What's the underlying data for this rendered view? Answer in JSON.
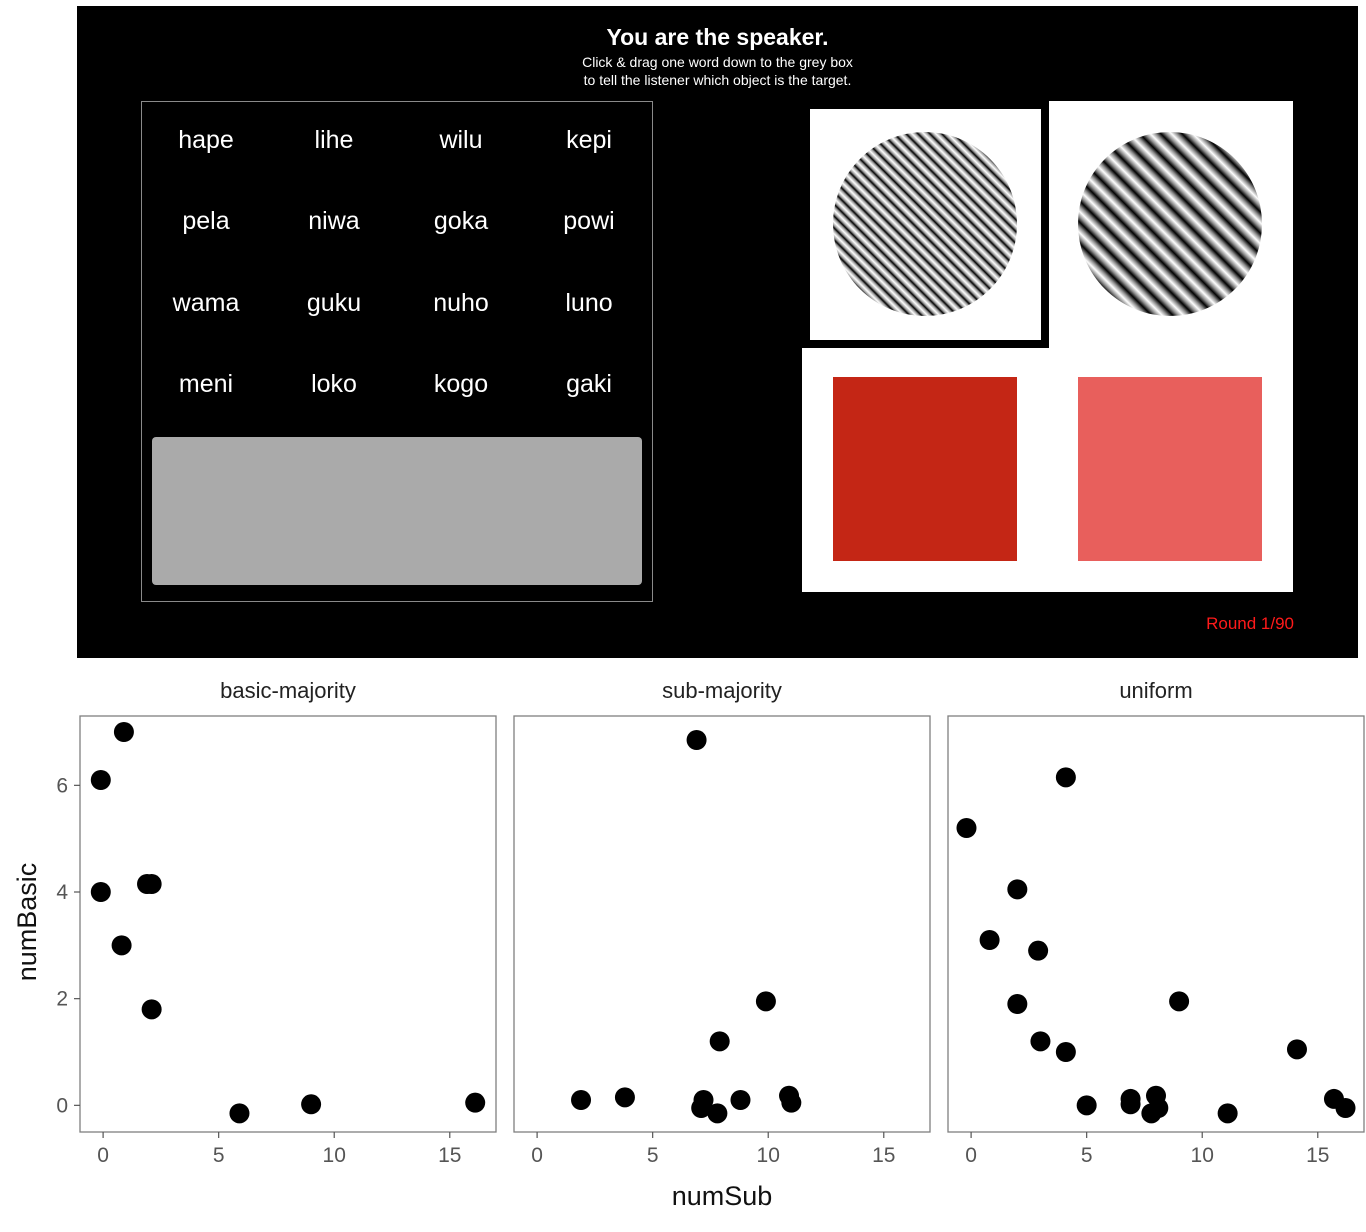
{
  "game": {
    "title": "You are the speaker.",
    "instruction_line1": "Click & drag one word down to the grey box",
    "instruction_line2": "to tell the listener which object is the target.",
    "words": [
      "hape",
      "lihe",
      "wilu",
      "kepi",
      "pela",
      "niwa",
      "goka",
      "powi",
      "wama",
      "guku",
      "nuho",
      "luno",
      "meni",
      "loko",
      "kogo",
      "gaki"
    ],
    "round_label": "Round 1/90",
    "colors": {
      "background": "#000000",
      "drop_box": "#aaaaaa",
      "round_text": "#ff1a1a",
      "swatch_dark_red": "#c42615",
      "swatch_light_red": "#e85f5c"
    },
    "objects": [
      {
        "kind": "grating",
        "target": true
      },
      {
        "kind": "grating",
        "target": false
      },
      {
        "kind": "color-swatch",
        "color": "#c42615"
      },
      {
        "kind": "color-swatch",
        "color": "#e85f5c"
      }
    ]
  },
  "chart_data": [
    {
      "type": "scatter",
      "title": "basic-majority",
      "xlabel": "numSub",
      "ylabel": "numBasic",
      "xlim": [
        -1,
        17
      ],
      "ylim": [
        -0.5,
        7.3
      ],
      "xticks": [
        0,
        5,
        10,
        15
      ],
      "yticks": [
        0,
        2,
        4,
        6
      ],
      "points": [
        {
          "x": -0.1,
          "y": 6.1
        },
        {
          "x": 0.9,
          "y": 7.0
        },
        {
          "x": -0.1,
          "y": 4.0
        },
        {
          "x": 1.9,
          "y": 4.15
        },
        {
          "x": 2.1,
          "y": 4.15
        },
        {
          "x": 0.8,
          "y": 3.0
        },
        {
          "x": 2.1,
          "y": 1.8
        },
        {
          "x": 5.9,
          "y": -0.15
        },
        {
          "x": 9.0,
          "y": 0.02
        },
        {
          "x": 16.1,
          "y": 0.05
        }
      ]
    },
    {
      "type": "scatter",
      "title": "sub-majority",
      "xlabel": "numSub",
      "ylabel": "numBasic",
      "xlim": [
        -1,
        17
      ],
      "ylim": [
        -0.5,
        7.3
      ],
      "xticks": [
        0,
        5,
        10,
        15
      ],
      "yticks": [
        0,
        2,
        4,
        6
      ],
      "points": [
        {
          "x": 6.9,
          "y": 6.85
        },
        {
          "x": 1.9,
          "y": 0.1
        },
        {
          "x": 3.8,
          "y": 0.15
        },
        {
          "x": 7.1,
          "y": -0.05
        },
        {
          "x": 7.2,
          "y": 0.1
        },
        {
          "x": 7.8,
          "y": -0.15
        },
        {
          "x": 7.9,
          "y": 1.2
        },
        {
          "x": 8.8,
          "y": 0.1
        },
        {
          "x": 9.9,
          "y": 1.95
        },
        {
          "x": 10.9,
          "y": 0.18
        },
        {
          "x": 11.0,
          "y": 0.05
        }
      ]
    },
    {
      "type": "scatter",
      "title": "uniform",
      "xlabel": "numSub",
      "ylabel": "numBasic",
      "xlim": [
        -1,
        17
      ],
      "ylim": [
        -0.5,
        7.3
      ],
      "xticks": [
        0,
        5,
        10,
        15
      ],
      "yticks": [
        0,
        2,
        4,
        6
      ],
      "points": [
        {
          "x": -0.2,
          "y": 5.2
        },
        {
          "x": 4.1,
          "y": 6.15
        },
        {
          "x": 2.0,
          "y": 4.05
        },
        {
          "x": 0.8,
          "y": 3.1
        },
        {
          "x": 2.9,
          "y": 2.9
        },
        {
          "x": 2.0,
          "y": 1.9
        },
        {
          "x": 3.0,
          "y": 1.2
        },
        {
          "x": 4.1,
          "y": 1.0
        },
        {
          "x": 5.0,
          "y": 0.0
        },
        {
          "x": 6.9,
          "y": 0.12
        },
        {
          "x": 6.9,
          "y": 0.02
        },
        {
          "x": 7.8,
          "y": -0.15
        },
        {
          "x": 8.0,
          "y": 0.18
        },
        {
          "x": 8.1,
          "y": -0.05
        },
        {
          "x": 9.0,
          "y": 1.95
        },
        {
          "x": 11.1,
          "y": -0.15
        },
        {
          "x": 14.1,
          "y": 1.05
        },
        {
          "x": 15.7,
          "y": 0.12
        },
        {
          "x": 16.2,
          "y": -0.05
        }
      ]
    }
  ]
}
